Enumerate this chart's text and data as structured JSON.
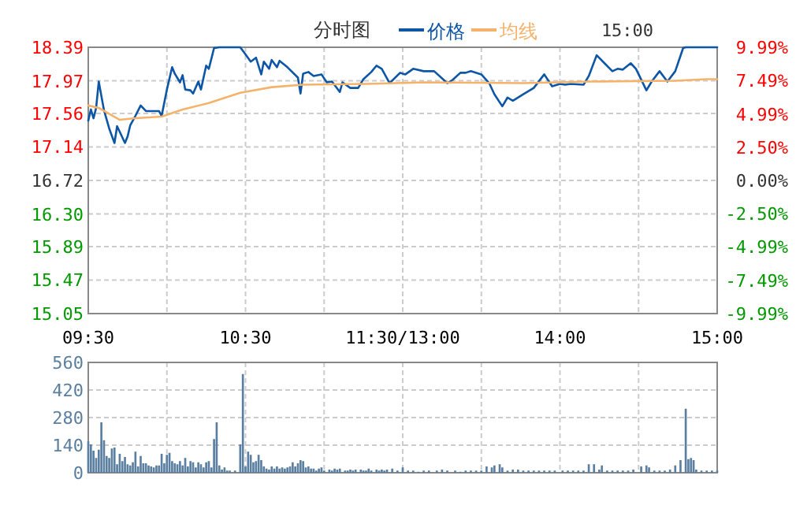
{
  "chart_data": [
    {
      "type": "line",
      "title": "分时图",
      "annotations": [
        "15:00"
      ],
      "legend": "top",
      "grid": true,
      "categories": [
        "09:30",
        null,
        null,
        null,
        null,
        null,
        null,
        null,
        null,
        null,
        null,
        null,
        null,
        null,
        null,
        null,
        null,
        null,
        null,
        null,
        null,
        null,
        null,
        null,
        null,
        null,
        null,
        null,
        null,
        null,
        null,
        null,
        null,
        null,
        null,
        null,
        null,
        null,
        null,
        null,
        null,
        null,
        null,
        null,
        null,
        null,
        null,
        null,
        null,
        null,
        null,
        null,
        null,
        null,
        null,
        null,
        null,
        null,
        null,
        null,
        "10:30",
        null,
        null,
        null,
        null,
        null,
        null,
        null,
        null,
        null,
        null,
        null,
        null,
        null,
        null,
        null,
        null,
        null,
        null,
        null,
        null,
        null,
        null,
        null,
        null,
        null,
        null,
        null,
        null,
        null,
        null,
        null,
        null,
        null,
        null,
        null,
        null,
        null,
        null,
        null,
        null,
        null,
        null,
        null,
        null,
        null,
        null,
        null,
        null,
        null,
        null,
        null,
        null,
        null,
        null,
        null,
        null,
        null,
        null,
        null,
        "11:30/13:00",
        null,
        null,
        null,
        null,
        null,
        null,
        null,
        null,
        null,
        null,
        null,
        null,
        null,
        null,
        null,
        null,
        null,
        null,
        null,
        null,
        null,
        null,
        null,
        null,
        null,
        null,
        null,
        null,
        null,
        null,
        null,
        null,
        null,
        null,
        null,
        null,
        null,
        null,
        null,
        null,
        null,
        null,
        null,
        null,
        null,
        null,
        null,
        null,
        null,
        null,
        null,
        null,
        null,
        null,
        null,
        null,
        null,
        null,
        null,
        "14:00",
        null,
        null,
        null,
        null,
        null,
        null,
        null,
        null,
        null,
        null,
        null,
        null,
        null,
        null,
        null,
        null,
        null,
        null,
        null,
        null,
        null,
        null,
        null,
        null,
        null,
        null,
        null,
        null,
        null,
        null,
        null,
        null,
        null,
        null,
        null,
        null,
        null,
        null,
        null,
        null,
        null,
        null,
        null,
        null,
        null,
        null,
        null,
        null,
        null,
        null,
        null,
        null,
        null,
        null,
        null,
        null,
        null,
        null,
        null,
        "15:00"
      ],
      "ylim": [
        15.05,
        18.39
      ],
      "yticks": [
        15.05,
        15.47,
        15.89,
        {
          "value": 16.3,
          "label": "16.30"
        },
        16.72,
        17.14,
        17.56,
        17.97,
        18.39
      ],
      "y2lim": [
        -9.99,
        9.99
      ],
      "y2ticks": [
        {
          "value": -9.99,
          "label": "-9.99%"
        },
        {
          "value": -7.49,
          "label": "-7.49%"
        },
        {
          "value": -4.99,
          "label": "-4.99%"
        },
        {
          "value": -2.5,
          "label": "-2.50%"
        },
        {
          "value": 0,
          "label": "0.00%"
        },
        {
          "value": 2.5,
          "label": "2.50%"
        },
        {
          "value": 4.99,
          "label": "4.99%"
        },
        {
          "value": 7.49,
          "label": "7.49%"
        },
        {
          "value": 9.99,
          "label": "9.99%"
        }
      ],
      "series": [
        {
          "name": "价格",
          "color": "#0d56a6",
          "values": [
            17.47,
            17.61,
            17.5,
            17.63,
            17.96,
            null,
            17.6,
            null,
            17.37,
            null,
            17.19,
            17.4,
            17.33,
            null,
            17.19,
            17.27,
            17.41,
            null,
            17.53,
            null,
            17.66,
            null,
            17.59,
            null,
            17.59,
            null,
            null,
            17.59,
            17.53,
            null,
            17.86,
            null,
            18.14,
            18.06,
            null,
            17.95,
            18.04,
            17.86,
            null,
            17.85,
            17.81,
            null,
            17.96,
            17.86,
            null,
            18.16,
            18.12,
            null,
            18.38,
            null,
            18.39,
            null,
            null,
            null,
            null,
            null,
            null,
            null,
            18.39,
            null,
            18.3,
            null,
            18.21,
            null,
            18.26,
            null,
            18.05,
            18.21,
            null,
            18.12,
            18.23,
            null,
            18.14,
            18.22,
            null,
            null,
            18.14,
            null,
            null,
            null,
            18.01,
            17.81,
            18.06,
            null,
            18.08,
            null,
            18.03,
            null,
            null,
            18.05,
            null,
            17.95,
            null,
            17.96,
            null,
            null,
            17.83,
            17.95,
            null,
            null,
            17.88,
            null,
            null,
            17.88,
            null,
            17.99,
            null,
            null,
            18.08,
            null,
            18.16,
            null,
            18.12,
            null,
            null,
            17.94,
            null,
            null,
            null,
            18.07,
            null,
            18.05,
            null,
            null,
            18.12,
            null,
            null,
            null,
            18.09,
            null,
            null,
            null,
            18.09,
            null,
            null,
            null,
            null,
            17.94,
            null,
            17.98,
            null,
            null,
            18.07,
            null,
            18.07,
            null,
            18.09,
            null,
            null,
            null,
            18.05,
            null,
            null,
            17.94,
            null,
            17.8,
            null,
            null,
            17.65,
            null,
            17.76,
            null,
            17.72,
            17.74,
            null,
            null,
            17.8,
            null,
            null,
            null,
            17.88,
            null,
            null,
            null,
            18.05,
            null,
            null,
            17.9,
            null,
            null,
            17.93,
            null,
            17.92,
            null,
            17.93,
            null,
            null,
            null,
            null,
            17.92,
            null,
            18.03,
            null,
            null,
            18.29,
            null,
            null,
            18.19,
            null,
            null,
            18.09,
            null,
            18.12,
            null,
            18.11,
            null,
            null,
            18.19,
            null,
            18.12,
            null,
            null,
            null,
            17.85,
            null,
            17.96,
            null,
            null,
            18.09,
            null,
            null,
            17.96,
            null,
            null,
            18.09,
            null,
            null,
            18.38,
            18.39,
            null,
            null,
            null,
            null,
            null,
            null,
            null,
            null,
            null,
            null,
            null,
            18.39
          ]
        },
        {
          "name": "均线",
          "color": "#f5b26b",
          "values": [
            17.66,
            null,
            null,
            null,
            17.63,
            null,
            null,
            null,
            null,
            null,
            null,
            null,
            17.48,
            null,
            null,
            null,
            null,
            null,
            17.5,
            null,
            null,
            null,
            null,
            null,
            null,
            null,
            null,
            null,
            17.52,
            null,
            null,
            null,
            null,
            null,
            null,
            null,
            17.61,
            null,
            null,
            null,
            null,
            null,
            null,
            null,
            null,
            null,
            17.69,
            null,
            null,
            null,
            null,
            null,
            null,
            null,
            null,
            null,
            null,
            null,
            17.82,
            null,
            null,
            null,
            null,
            null,
            null,
            null,
            null,
            null,
            null,
            null,
            17.89,
            null,
            null,
            null,
            null,
            null,
            null,
            null,
            null,
            null,
            null,
            null,
            17.92,
            null,
            null,
            null,
            null,
            null,
            null,
            null,
            null,
            null,
            null,
            null,
            null,
            null,
            null,
            null,
            null,
            null,
            null,
            null,
            null,
            null,
            null,
            null,
            17.93,
            null,
            null,
            null,
            null,
            null,
            null,
            null,
            null,
            null,
            null,
            null,
            null,
            null,
            null,
            null,
            null,
            null,
            null,
            null,
            null,
            null,
            17.95,
            null,
            null,
            null,
            null,
            null,
            null,
            null,
            null,
            null,
            null,
            null,
            null,
            null,
            null,
            null,
            null,
            null,
            null,
            null,
            null,
            null,
            null,
            null,
            null,
            null,
            null,
            null,
            null,
            null,
            null,
            null,
            null,
            null,
            null,
            null,
            null,
            null,
            17.94,
            null,
            null,
            null,
            null,
            null,
            null,
            null,
            null,
            null,
            null,
            null,
            null,
            null,
            null,
            null,
            null,
            null,
            null,
            null,
            null,
            null,
            null,
            null,
            null,
            null,
            17.96,
            null,
            null,
            null,
            null,
            null,
            null,
            null,
            null,
            null,
            null,
            null,
            null,
            null,
            null,
            null,
            null,
            null,
            null,
            null,
            null,
            null,
            null,
            null,
            null,
            null,
            null,
            null,
            null,
            null,
            null,
            null,
            17.97,
            null,
            null,
            null,
            null,
            null,
            null,
            null,
            null,
            null,
            null,
            null,
            17.99,
            null,
            null,
            null,
            17.99
          ]
        }
      ]
    },
    {
      "type": "bar",
      "grid": true,
      "tick_labels": "y",
      "color": "#5b7fa0",
      "categories": [
        null,
        null,
        null,
        null,
        null,
        null,
        null,
        null,
        null,
        null,
        null,
        null,
        null,
        null,
        null,
        null,
        null,
        null,
        null,
        null,
        null,
        null,
        null,
        null,
        null,
        null,
        null,
        null,
        null,
        null,
        null,
        null,
        null,
        null,
        null,
        null,
        null,
        null,
        null,
        null,
        null,
        null,
        null,
        null,
        null,
        null,
        null,
        null,
        null,
        null,
        null,
        null,
        null,
        null,
        null,
        null,
        null,
        null,
        null,
        null,
        null,
        null,
        null,
        null,
        null,
        null,
        null,
        null,
        null,
        null,
        null,
        null,
        null,
        null,
        null,
        null,
        null,
        null,
        null,
        null,
        null,
        null,
        null,
        null,
        null,
        null,
        null,
        null,
        null,
        null,
        null,
        null,
        null,
        null,
        null,
        null,
        null,
        null,
        null,
        null,
        null,
        null,
        null,
        null,
        null,
        null,
        null,
        null,
        null,
        null,
        null,
        null,
        null,
        null,
        null,
        null,
        null,
        null,
        null,
        null,
        null,
        null,
        null,
        null,
        null,
        null,
        null,
        null,
        null,
        null,
        null,
        null,
        null,
        null,
        null,
        null,
        null,
        null,
        null,
        null,
        null,
        null,
        null,
        null,
        null,
        null,
        null,
        null,
        null,
        null,
        null,
        null,
        null,
        null,
        null,
        null,
        null,
        null,
        null,
        null,
        null,
        null,
        null,
        null,
        null,
        null,
        null,
        null,
        null,
        null,
        null,
        null,
        null,
        null,
        null,
        null,
        null,
        null,
        null,
        null,
        null,
        null,
        null,
        null,
        null,
        null,
        null,
        null,
        null,
        null,
        null,
        null,
        null,
        null,
        null,
        null,
        null,
        null,
        null,
        null,
        null,
        null,
        null,
        null,
        null,
        null,
        null,
        null,
        null,
        null,
        null,
        null,
        null,
        null,
        null,
        null,
        null,
        null,
        null,
        null,
        null,
        null,
        null,
        null,
        null,
        null,
        null,
        null,
        null,
        null,
        null,
        null,
        null,
        null,
        null,
        null,
        null,
        null,
        null,
        null,
        null
      ],
      "ylim": [
        0,
        560
      ],
      "yticks": [
        0,
        140,
        280,
        420,
        560
      ],
      "values": [
        160,
        144,
        112,
        75,
        117,
        256,
        165,
        85,
        75,
        123,
        128,
        43,
        96,
        59,
        80,
        43,
        37,
        53,
        107,
        32,
        85,
        48,
        48,
        37,
        32,
        27,
        37,
        37,
        96,
        48,
        91,
        101,
        59,
        48,
        43,
        59,
        37,
        75,
        32,
        59,
        53,
        27,
        53,
        43,
        27,
        53,
        59,
        27,
        171,
        256,
        37,
        16,
        27,
        11,
        11,
        null,
        11,
        null,
        144,
        501,
        32,
        107,
        91,
        53,
        59,
        91,
        64,
        32,
        21,
        16,
        32,
        21,
        32,
        21,
        27,
        21,
        27,
        32,
        53,
        32,
        48,
        64,
        59,
        27,
        32,
        21,
        21,
        11,
        21,
        27,
        11,
        null,
        16,
        11,
        21,
        16,
        21,
        null,
        11,
        11,
        16,
        11,
        16,
        null,
        16,
        11,
        11,
        21,
        11,
        null,
        16,
        11,
        16,
        11,
        16,
        null,
        21,
        null,
        11,
        null,
        27,
        null,
        11,
        null,
        11,
        null,
        5,
        null,
        11,
        null,
        11,
        null,
        null,
        11,
        null,
        16,
        null,
        11,
        null,
        null,
        11,
        null,
        5,
        null,
        11,
        null,
        11,
        null,
        11,
        null,
        11,
        null,
        32,
        null,
        27,
        37,
        null,
        43,
        27,
        null,
        11,
        null,
        16,
        null,
        16,
        null,
        11,
        null,
        11,
        null,
        11,
        null,
        11,
        null,
        11,
        null,
        11,
        null,
        11,
        null,
        null,
        11,
        null,
        11,
        null,
        11,
        null,
        11,
        null,
        11,
        null,
        43,
        null,
        43,
        null,
        16,
        37,
        null,
        11,
        null,
        11,
        null,
        11,
        null,
        11,
        null,
        11,
        null,
        16,
        null,
        null,
        32,
        null,
        37,
        27,
        null,
        11,
        null,
        11,
        null,
        11,
        null,
        16,
        null,
        37,
        null,
        64,
        null,
        325,
        69,
        75,
        64,
        16,
        null,
        11,
        null,
        11,
        null,
        11,
        null,
        11
      ]
    }
  ]
}
